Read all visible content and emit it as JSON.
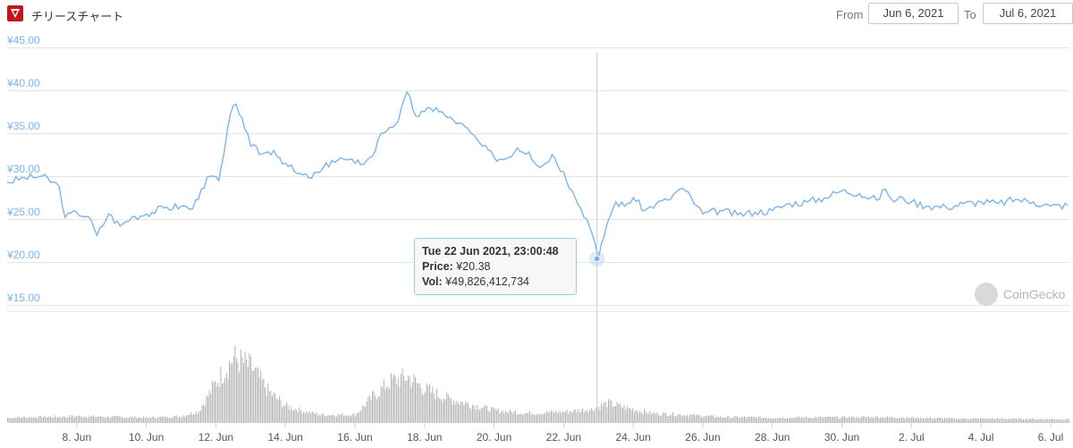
{
  "header": {
    "title": "チリースチャート",
    "from_label": "From",
    "from_value": "Jun 6, 2021",
    "to_label": "To",
    "to_value": "Jul 6, 2021"
  },
  "tooltip": {
    "title": "Tue 22 Jun 2021, 23:00:48",
    "price_label": "Price:",
    "price_value": "¥20.38",
    "vol_label": "Vol:",
    "vol_value": "¥49,826,412,734"
  },
  "watermark": "CoinGecko",
  "colors": {
    "line": "#7cb5ec",
    "volume": "#9a9a9a",
    "axis_label": "#7cb5ec",
    "grid": "#e6e6e6",
    "crosshair": "#cccccc"
  },
  "chart_data": {
    "type": "line",
    "title": "チリースチャート",
    "y_ticks": [
      "¥45.00",
      "¥40.00",
      "¥35.00",
      "¥30.00",
      "¥25.00",
      "¥20.00",
      "¥15.00"
    ],
    "ylim": [
      15,
      45
    ],
    "x_ticks": [
      "8. Jun",
      "10. Jun",
      "12. Jun",
      "14. Jun",
      "16. Jun",
      "18. Jun",
      "20. Jun",
      "22. Jun",
      "24. Jun",
      "26. Jun",
      "28. Jun",
      "30. Jun",
      "2. Jul",
      "4. Jul",
      "6. Jul"
    ],
    "x_start": "2021-06-06",
    "x_end": "2021-07-06",
    "grid": true,
    "price_series": {
      "name": "Price",
      "points": [
        [
          "2021-06-06T00:00",
          29.3
        ],
        [
          "2021-06-06T12:00",
          29.8
        ],
        [
          "2021-06-07T00:00",
          30.0
        ],
        [
          "2021-06-07T12:00",
          28.8
        ],
        [
          "2021-06-07T16:00",
          25.2
        ],
        [
          "2021-06-08T00:00",
          25.8
        ],
        [
          "2021-06-08T08:00",
          25.3
        ],
        [
          "2021-06-08T14:00",
          23.1
        ],
        [
          "2021-06-08T22:00",
          25.6
        ],
        [
          "2021-06-09T06:00",
          24.2
        ],
        [
          "2021-06-09T14:00",
          25.2
        ],
        [
          "2021-06-10T00:00",
          25.6
        ],
        [
          "2021-06-10T12:00",
          26.3
        ],
        [
          "2021-06-11T00:00",
          26.5
        ],
        [
          "2021-06-11T08:00",
          26.2
        ],
        [
          "2021-06-11T14:00",
          28.5
        ],
        [
          "2021-06-11T20:00",
          30.0
        ],
        [
          "2021-06-12T02:00",
          29.5
        ],
        [
          "2021-06-12T06:00",
          33.0
        ],
        [
          "2021-06-12T10:00",
          37.2
        ],
        [
          "2021-06-12T14:00",
          38.4
        ],
        [
          "2021-06-12T18:00",
          36.8
        ],
        [
          "2021-06-13T00:00",
          33.5
        ],
        [
          "2021-06-13T08:00",
          32.6
        ],
        [
          "2021-06-13T16:00",
          33.0
        ],
        [
          "2021-06-14T00:00",
          31.5
        ],
        [
          "2021-06-14T08:00",
          30.3
        ],
        [
          "2021-06-14T16:00",
          29.8
        ],
        [
          "2021-06-15T00:00",
          30.5
        ],
        [
          "2021-06-15T08:00",
          31.8
        ],
        [
          "2021-06-15T16:00",
          32.0
        ],
        [
          "2021-06-16T00:00",
          31.5
        ],
        [
          "2021-06-16T08:00",
          31.8
        ],
        [
          "2021-06-16T12:00",
          32.3
        ],
        [
          "2021-06-16T18:00",
          35.0
        ],
        [
          "2021-06-17T00:00",
          35.7
        ],
        [
          "2021-06-17T06:00",
          36.5
        ],
        [
          "2021-06-17T12:00",
          39.8
        ],
        [
          "2021-06-17T18:00",
          37.0
        ],
        [
          "2021-06-18T00:00",
          37.5
        ],
        [
          "2021-06-18T08:00",
          38.0
        ],
        [
          "2021-06-18T16:00",
          36.8
        ],
        [
          "2021-06-19T00:00",
          36.2
        ],
        [
          "2021-06-19T08:00",
          35.0
        ],
        [
          "2021-06-19T16:00",
          33.5
        ],
        [
          "2021-06-20T00:00",
          32.2
        ],
        [
          "2021-06-20T08:00",
          32.0
        ],
        [
          "2021-06-20T16:00",
          33.3
        ],
        [
          "2021-06-21T00:00",
          32.8
        ],
        [
          "2021-06-21T08:00",
          31.0
        ],
        [
          "2021-06-21T16:00",
          32.5
        ],
        [
          "2021-06-22T00:00",
          30.5
        ],
        [
          "2021-06-22T08:00",
          27.5
        ],
        [
          "2021-06-22T16:00",
          25.0
        ],
        [
          "2021-06-22T20:00",
          23.1
        ],
        [
          "2021-06-23T00:00",
          20.38
        ],
        [
          "2021-06-23T06:00",
          24.5
        ],
        [
          "2021-06-23T12:00",
          27.0
        ],
        [
          "2021-06-23T18:00",
          26.5
        ],
        [
          "2021-06-24T00:00",
          27.5
        ],
        [
          "2021-06-24T08:00",
          26.0
        ],
        [
          "2021-06-24T16:00",
          26.8
        ],
        [
          "2021-06-25T00:00",
          27.2
        ],
        [
          "2021-06-25T08:00",
          28.5
        ],
        [
          "2021-06-25T12:00",
          28.3
        ],
        [
          "2021-06-25T20:00",
          26.5
        ],
        [
          "2021-06-26T00:00",
          25.6
        ],
        [
          "2021-06-26T12:00",
          26.0
        ],
        [
          "2021-06-27T00:00",
          25.5
        ],
        [
          "2021-06-27T12:00",
          25.8
        ],
        [
          "2021-06-28T00:00",
          26.0
        ],
        [
          "2021-06-28T12:00",
          26.8
        ],
        [
          "2021-06-29T00:00",
          27.0
        ],
        [
          "2021-06-29T12:00",
          27.5
        ],
        [
          "2021-06-30T00:00",
          28.3
        ],
        [
          "2021-06-30T12:00",
          28.0
        ],
        [
          "2021-07-01T00:00",
          27.2
        ],
        [
          "2021-07-01T06:00",
          28.5
        ],
        [
          "2021-07-01T12:00",
          27.0
        ],
        [
          "2021-07-01T18:00",
          27.5
        ],
        [
          "2021-07-02T00:00",
          27.0
        ],
        [
          "2021-07-02T12:00",
          26.5
        ],
        [
          "2021-07-03T00:00",
          26.4
        ],
        [
          "2021-07-03T12:00",
          26.8
        ],
        [
          "2021-07-04T00:00",
          27.0
        ],
        [
          "2021-07-04T12:00",
          26.8
        ],
        [
          "2021-07-05T00:00",
          27.3
        ],
        [
          "2021-07-05T12:00",
          27.0
        ],
        [
          "2021-07-06T00:00",
          26.5
        ],
        [
          "2021-07-06T12:00",
          26.6
        ]
      ]
    },
    "volume_series": {
      "name": "Vol",
      "relative_levels": [
        [
          "2021-06-06T00:00",
          0.06
        ],
        [
          "2021-06-07T00:00",
          0.07
        ],
        [
          "2021-06-08T00:00",
          0.08
        ],
        [
          "2021-06-09T00:00",
          0.07
        ],
        [
          "2021-06-10T00:00",
          0.06
        ],
        [
          "2021-06-11T00:00",
          0.08
        ],
        [
          "2021-06-11T12:00",
          0.15
        ],
        [
          "2021-06-12T00:00",
          0.55
        ],
        [
          "2021-06-12T12:00",
          0.88
        ],
        [
          "2021-06-13T00:00",
          0.75
        ],
        [
          "2021-06-13T12:00",
          0.42
        ],
        [
          "2021-06-14T00:00",
          0.22
        ],
        [
          "2021-06-14T12:00",
          0.15
        ],
        [
          "2021-06-15T00:00",
          0.1
        ],
        [
          "2021-06-16T00:00",
          0.1
        ],
        [
          "2021-06-16T12:00",
          0.35
        ],
        [
          "2021-06-17T00:00",
          0.55
        ],
        [
          "2021-06-17T12:00",
          0.62
        ],
        [
          "2021-06-18T00:00",
          0.45
        ],
        [
          "2021-06-18T12:00",
          0.35
        ],
        [
          "2021-06-19T00:00",
          0.28
        ],
        [
          "2021-06-20T00:00",
          0.16
        ],
        [
          "2021-06-21T00:00",
          0.12
        ],
        [
          "2021-06-22T00:00",
          0.14
        ],
        [
          "2021-06-22T20:00",
          0.18
        ],
        [
          "2021-06-23T06:00",
          0.26
        ],
        [
          "2021-06-23T18:00",
          0.2
        ],
        [
          "2021-06-24T12:00",
          0.12
        ],
        [
          "2021-06-25T12:00",
          0.1
        ],
        [
          "2021-06-26T12:00",
          0.07
        ],
        [
          "2021-06-28T00:00",
          0.06
        ],
        [
          "2021-07-01T00:00",
          0.07
        ],
        [
          "2021-07-03T00:00",
          0.05
        ],
        [
          "2021-07-06T12:00",
          0.04
        ]
      ]
    },
    "highlighted_point": {
      "x": "2021-06-22T23:00:48",
      "y": 20.38
    }
  }
}
